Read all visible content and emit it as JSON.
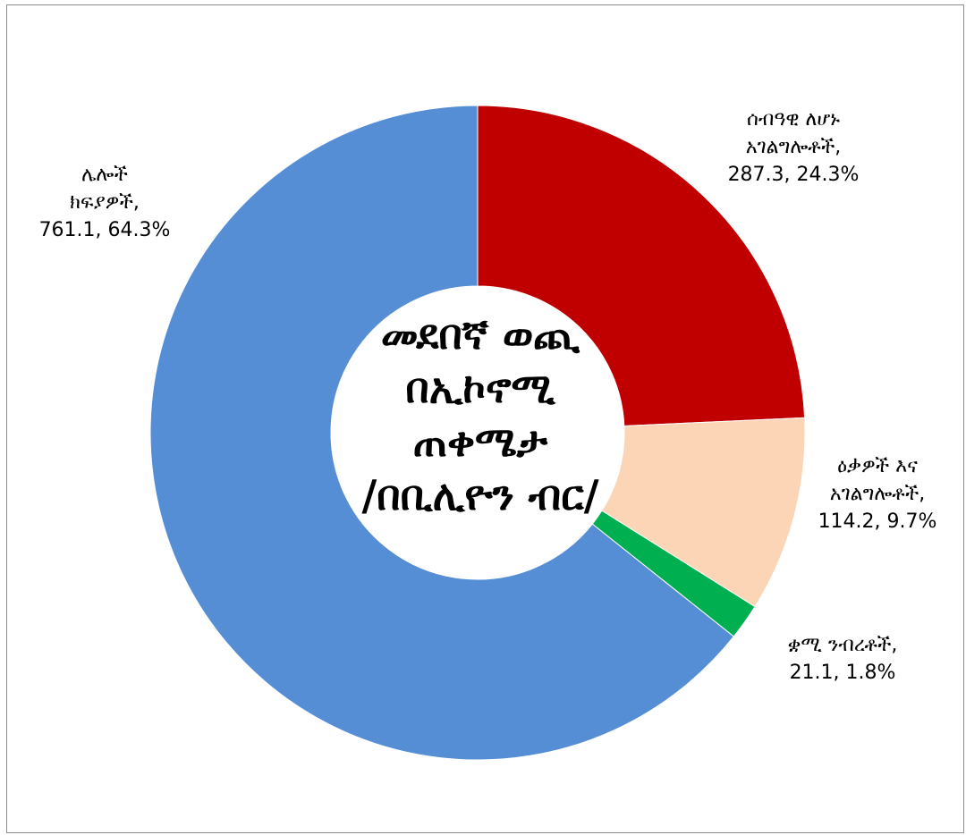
{
  "chart_data": {
    "type": "pie",
    "donut": true,
    "center_title": [
      "መደበኛ ወጪ",
      "በኢኮኖሚ",
      "ጠቀሜታ",
      "/በቢሊዮን ብር/"
    ],
    "slices": [
      {
        "label": [
          "ሰብዓዊ ለሆኑ",
          "አገልግሎቶች,"
        ],
        "value": 287.3,
        "percent": 24.3,
        "value_text": "287.3, 24.3%",
        "color": "#c00000"
      },
      {
        "label": [
          "ዕቃዎች እና",
          "አገልግሎቶች,"
        ],
        "value": 114.2,
        "percent": 9.7,
        "value_text": "114.2, 9.7%",
        "color": "#fbd5b5"
      },
      {
        "label": [
          "ቋሚ ንብረቶች,"
        ],
        "value": 21.1,
        "percent": 1.8,
        "value_text": "21.1, 1.8%",
        "color": "#00b050"
      },
      {
        "label": [
          "ሌሎች",
          "ክፍያዎች,"
        ],
        "value": 761.1,
        "percent": 64.3,
        "value_text": "761.1, 64.3%",
        "color": "#558ed5"
      }
    ]
  }
}
